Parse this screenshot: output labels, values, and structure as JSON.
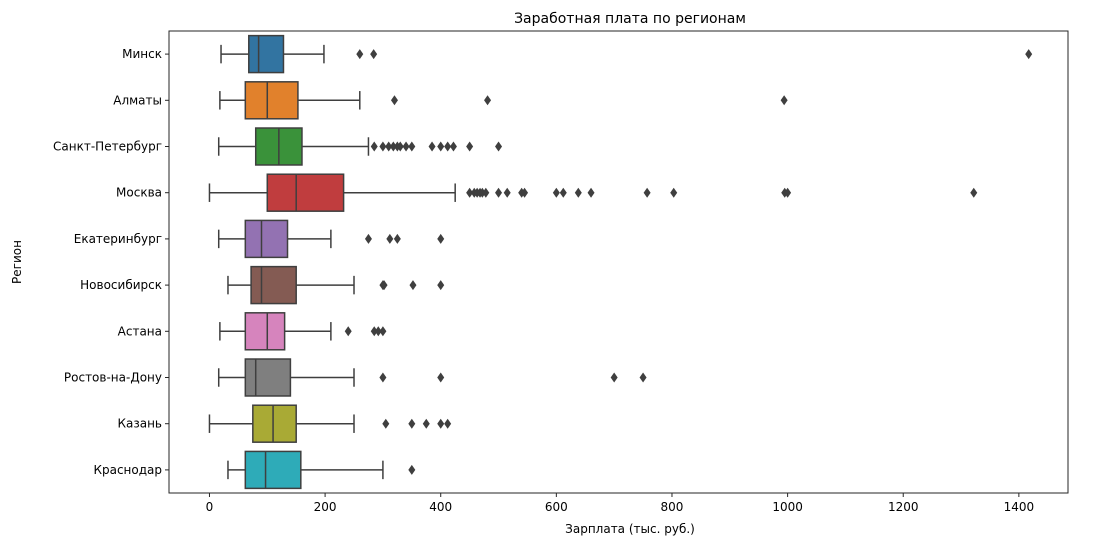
{
  "chart_data": {
    "type": "box",
    "orientation": "horizontal",
    "title": "Заработная плата по регионам",
    "xlabel": "Зарплата (тыс. руб.)",
    "ylabel": "Регион",
    "xlim": [
      -70,
      1485
    ],
    "xticks": [
      0,
      200,
      400,
      600,
      800,
      1000,
      1200,
      1400
    ],
    "grid": false,
    "series": [
      {
        "category": "Минск",
        "color": "#3274a1",
        "whisker_low": 20,
        "q1": 68,
        "median": 85,
        "q3": 128,
        "whisker_high": 198,
        "outliers": [
          260,
          284,
          1417
        ]
      },
      {
        "category": "Алматы",
        "color": "#e1812c",
        "whisker_low": 18,
        "q1": 62,
        "median": 100,
        "q3": 153,
        "whisker_high": 260,
        "outliers": [
          320,
          481,
          994
        ]
      },
      {
        "category": "Санкт-Петербург",
        "color": "#3a923a",
        "whisker_low": 16,
        "q1": 80,
        "median": 120,
        "q3": 160,
        "whisker_high": 275,
        "outliers": [
          285,
          300,
          310,
          318,
          325,
          330,
          340,
          350,
          385,
          400,
          412,
          422,
          450,
          500
        ]
      },
      {
        "category": "Москва",
        "color": "#c03d3e",
        "whisker_low": 0,
        "q1": 100,
        "median": 150,
        "q3": 232,
        "whisker_high": 425,
        "outliers": [
          450,
          458,
          463,
          468,
          472,
          478,
          500,
          515,
          540,
          545,
          600,
          612,
          638,
          660,
          757,
          803,
          995,
          1000,
          1322
        ]
      },
      {
        "category": "Екатеринбург",
        "color": "#9372b2",
        "whisker_low": 16,
        "q1": 62,
        "median": 90,
        "q3": 135,
        "whisker_high": 210,
        "outliers": [
          275,
          312,
          325,
          400
        ]
      },
      {
        "category": "Новосибирск",
        "color": "#845b53",
        "whisker_low": 32,
        "q1": 72,
        "median": 90,
        "q3": 150,
        "whisker_high": 250,
        "outliers": [
          300,
          302,
          352,
          400
        ]
      },
      {
        "category": "Астана",
        "color": "#d684bd",
        "whisker_low": 18,
        "q1": 62,
        "median": 100,
        "q3": 130,
        "whisker_high": 210,
        "outliers": [
          240,
          285,
          292,
          300
        ]
      },
      {
        "category": "Ростов-на-Дону",
        "color": "#7f7f7f",
        "whisker_low": 16,
        "q1": 62,
        "median": 80,
        "q3": 140,
        "whisker_high": 250,
        "outliers": [
          300,
          400,
          700,
          750
        ]
      },
      {
        "category": "Казань",
        "color": "#a9aa35",
        "whisker_low": 0,
        "q1": 75,
        "median": 110,
        "q3": 150,
        "whisker_high": 250,
        "outliers": [
          305,
          350,
          375,
          400,
          412
        ]
      },
      {
        "category": "Краснодар",
        "color": "#2eabb8",
        "whisker_low": 32,
        "q1": 62,
        "median": 97,
        "q3": 158,
        "whisker_high": 300,
        "outliers": [
          350
        ]
      }
    ]
  }
}
